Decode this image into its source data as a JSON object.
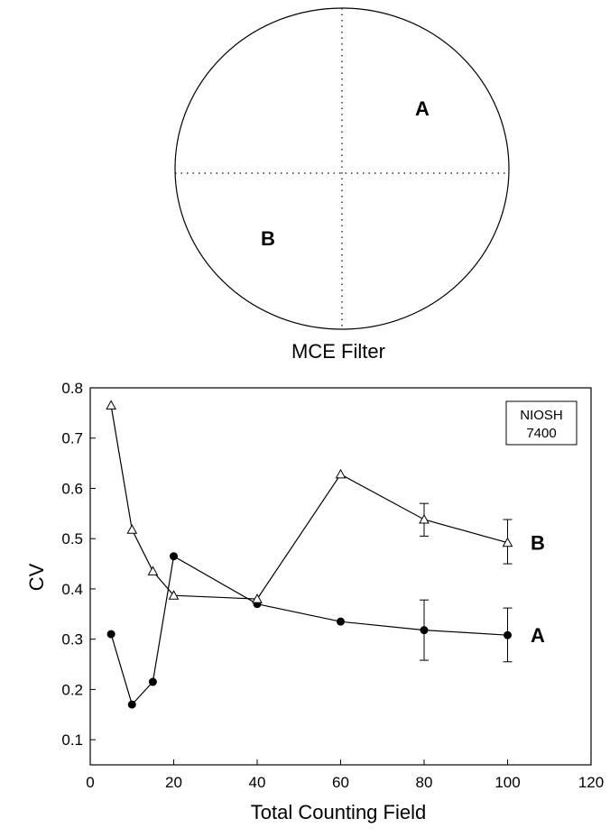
{
  "filter_diagram": {
    "caption": "MCE Filter",
    "region_a": "A",
    "region_b": "B"
  },
  "chart_data": {
    "type": "line",
    "xlabel": "Total Counting Field",
    "ylabel": "CV",
    "xlim": [
      0,
      120
    ],
    "ylim": [
      0.05,
      0.8
    ],
    "x_ticks": [
      "0",
      "20",
      "40",
      "60",
      "80",
      "100",
      "120"
    ],
    "y_ticks": [
      "0.1",
      "0.2",
      "0.3",
      "0.4",
      "0.5",
      "0.6",
      "0.7",
      "0.8"
    ],
    "legend_box": [
      "NIOSH",
      "7400"
    ],
    "legend_placement": "top-right",
    "grid": false,
    "series": [
      {
        "name": "A",
        "marker": "filled-circle",
        "x": [
          5,
          10,
          15,
          20,
          40,
          60,
          80,
          100
        ],
        "y": [
          0.31,
          0.17,
          0.215,
          0.465,
          0.37,
          0.335,
          0.318,
          0.308
        ],
        "error_bars": [
          {
            "x": 80,
            "low": 0.258,
            "high": 0.378
          },
          {
            "x": 100,
            "low": 0.255,
            "high": 0.362
          }
        ]
      },
      {
        "name": "B",
        "marker": "open-triangle",
        "x": [
          5,
          10,
          15,
          20,
          40,
          60,
          80,
          100
        ],
        "y": [
          0.765,
          0.518,
          0.435,
          0.387,
          0.38,
          0.628,
          0.538,
          0.492
        ],
        "error_bars": [
          {
            "x": 80,
            "low": 0.505,
            "high": 0.57
          },
          {
            "x": 100,
            "low": 0.45,
            "high": 0.538
          }
        ]
      }
    ]
  }
}
